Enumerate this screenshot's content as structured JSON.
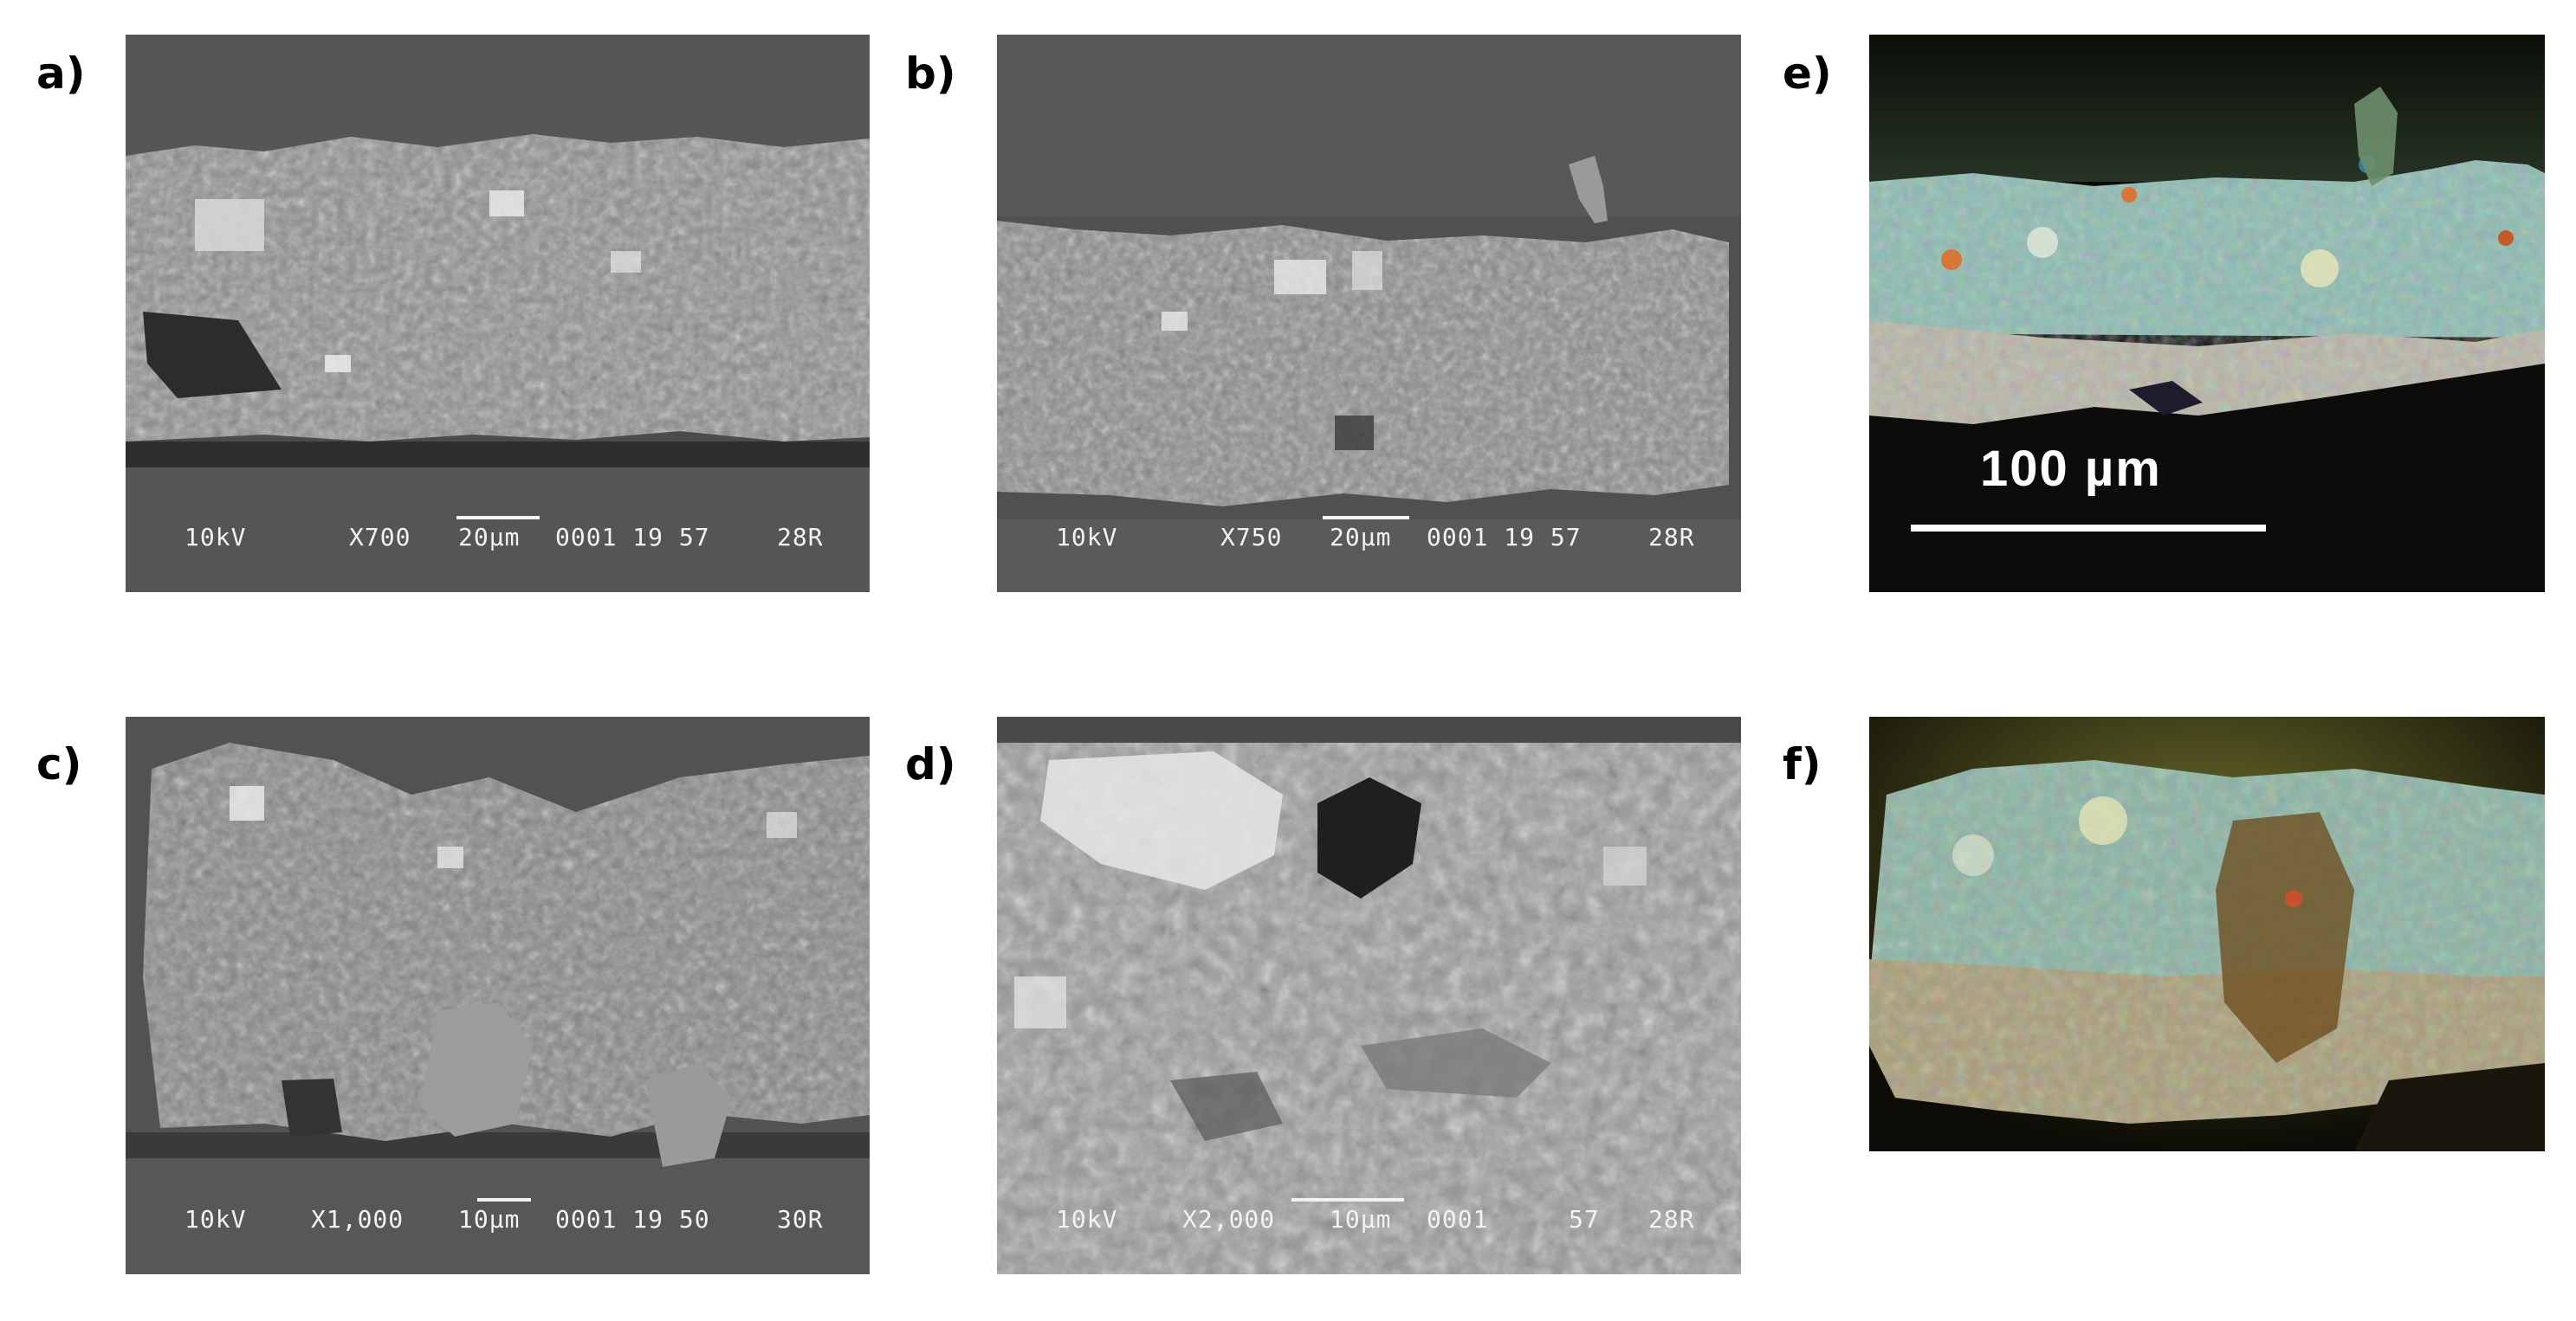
{
  "labels": {
    "a": "a)",
    "b": "b)",
    "c": "c)",
    "d": "d)",
    "e": "e)",
    "f": "f)"
  },
  "panel_a": {
    "kv": "10kV",
    "mag": "X700",
    "scale": "20µm",
    "code": "0001 19 57",
    "wd": "28R"
  },
  "panel_b": {
    "kv": "10kV",
    "mag": "X750",
    "scale": "20µm",
    "code": "0001 19 57",
    "wd": "28R"
  },
  "panel_c": {
    "kv": "10kV",
    "mag": "X1,000",
    "scale": "10µm",
    "code": "0001 19 50",
    "wd": "30R"
  },
  "panel_d": {
    "kv": "10kV",
    "mag": "X2,000",
    "scale": "10µm",
    "code": "0001",
    "code2": "57",
    "wd": "28R"
  },
  "panel_e": {
    "scale": "100  µm"
  },
  "colors": {
    "sem_background": "#4a4a4a",
    "sem_layer": "#8c8c8c",
    "om_background": "#0d0d08",
    "om_blue_layer": "#7fb5a8",
    "om_ground_layer": "#b9b4a4"
  }
}
